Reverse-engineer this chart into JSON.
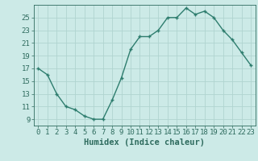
{
  "x": [
    0,
    1,
    2,
    3,
    4,
    5,
    6,
    7,
    8,
    9,
    10,
    11,
    12,
    13,
    14,
    15,
    16,
    17,
    18,
    19,
    20,
    21,
    22,
    23
  ],
  "y": [
    17,
    16,
    13,
    11,
    10.5,
    9.5,
    9,
    9,
    12,
    15.5,
    20,
    22,
    22,
    23,
    25,
    25,
    26.5,
    25.5,
    26,
    25,
    23,
    21.5,
    19.5,
    17.5
  ],
  "line_color": "#2e7d6e",
  "marker": "+",
  "bg_color": "#cceae7",
  "grid_color": "#b0d4d0",
  "xlabel": "Humidex (Indice chaleur)",
  "xlim": [
    -0.5,
    23.5
  ],
  "ylim": [
    8.0,
    27.0
  ],
  "yticks": [
    9,
    11,
    13,
    15,
    17,
    19,
    21,
    23,
    25
  ],
  "xticks": [
    0,
    1,
    2,
    3,
    4,
    5,
    6,
    7,
    8,
    9,
    10,
    11,
    12,
    13,
    14,
    15,
    16,
    17,
    18,
    19,
    20,
    21,
    22,
    23
  ],
  "tick_color": "#2e6b5e",
  "label_color": "#2e6b5e",
  "font_size": 6.5,
  "xlabel_fontsize": 7.5,
  "line_width": 1.0,
  "marker_size": 3.5,
  "marker_edge_width": 1.0
}
